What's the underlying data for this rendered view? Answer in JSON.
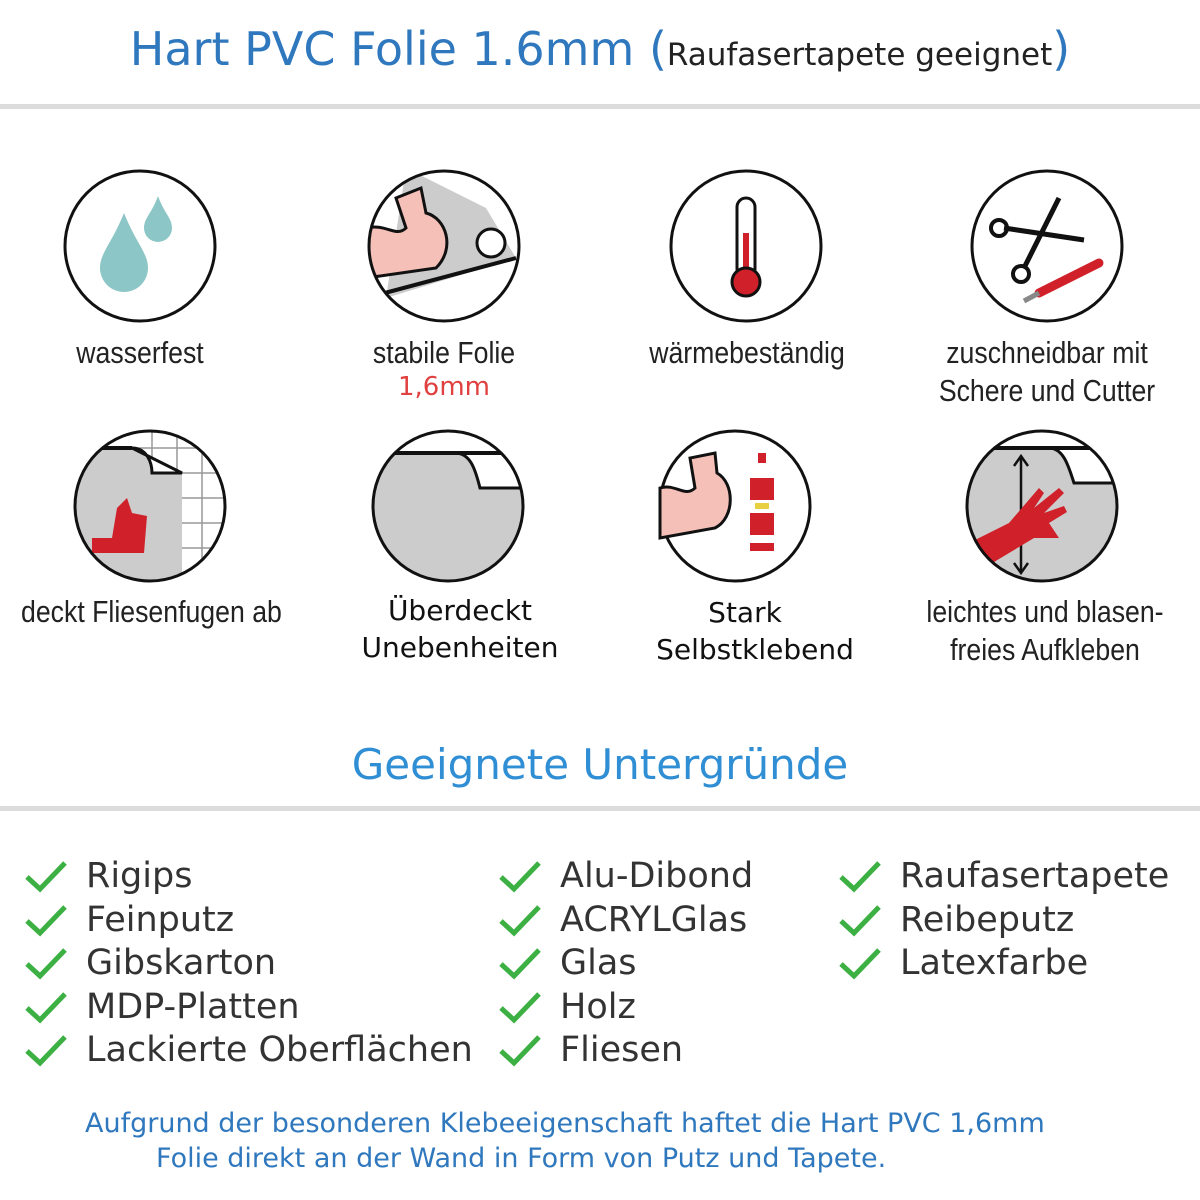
{
  "header": {
    "title": "Hart PVC Folie 1.6mm",
    "paren_open": "(",
    "subtitle": "Raufasertapete geeignet",
    "paren_close": ")"
  },
  "features": [
    {
      "icon": "water-drops-icon",
      "label": "wasserfest"
    },
    {
      "icon": "strong-arm-roll-icon",
      "label": "stabile Folie",
      "highlight": "1,6mm"
    },
    {
      "icon": "thermometer-icon",
      "label": "wärmebeständig"
    },
    {
      "icon": "scissors-cutter-icon",
      "label_lines": [
        "zuschneidbar mit",
        "Schere und Cutter"
      ]
    },
    {
      "icon": "thumbs-up-tiles-icon",
      "label": "deckt Fliesenfugen ab"
    },
    {
      "icon": "foil-corner-icon",
      "label_lines": [
        "Überdeckt",
        "Unebenheiten"
      ]
    },
    {
      "icon": "arm-glue-icon",
      "label_lines": [
        "Stark",
        "Selbstklebend"
      ]
    },
    {
      "icon": "hand-smoothing-icon",
      "label_lines": [
        "leichtes und blasen-",
        "freies Aufkleben"
      ]
    }
  ],
  "surfaces": {
    "heading": "Geeignete Untergründe",
    "columns": [
      [
        "Rigips",
        "Feinputz",
        "Gibskarton",
        "MDP-Platten",
        "Lackierte Oberflächen"
      ],
      [
        "Alu-Dibond",
        "ACRYLGlas",
        "Glas",
        "Holz",
        "Fliesen"
      ],
      [
        "Raufasertapete",
        "Reibeputz",
        "Latexfarbe"
      ]
    ]
  },
  "footer": {
    "lines": [
      "Aufgrund der besonderen Klebeeigenschaft haftet die Hart PVC 1,6mm",
      "Folie direkt an der Wand in Form von Putz und Tapete."
    ]
  },
  "colors": {
    "title_blue": "#2f78be",
    "heading_blue": "#2f8ed4",
    "check_green": "#3cb043",
    "accent_red": "#d0202a"
  }
}
